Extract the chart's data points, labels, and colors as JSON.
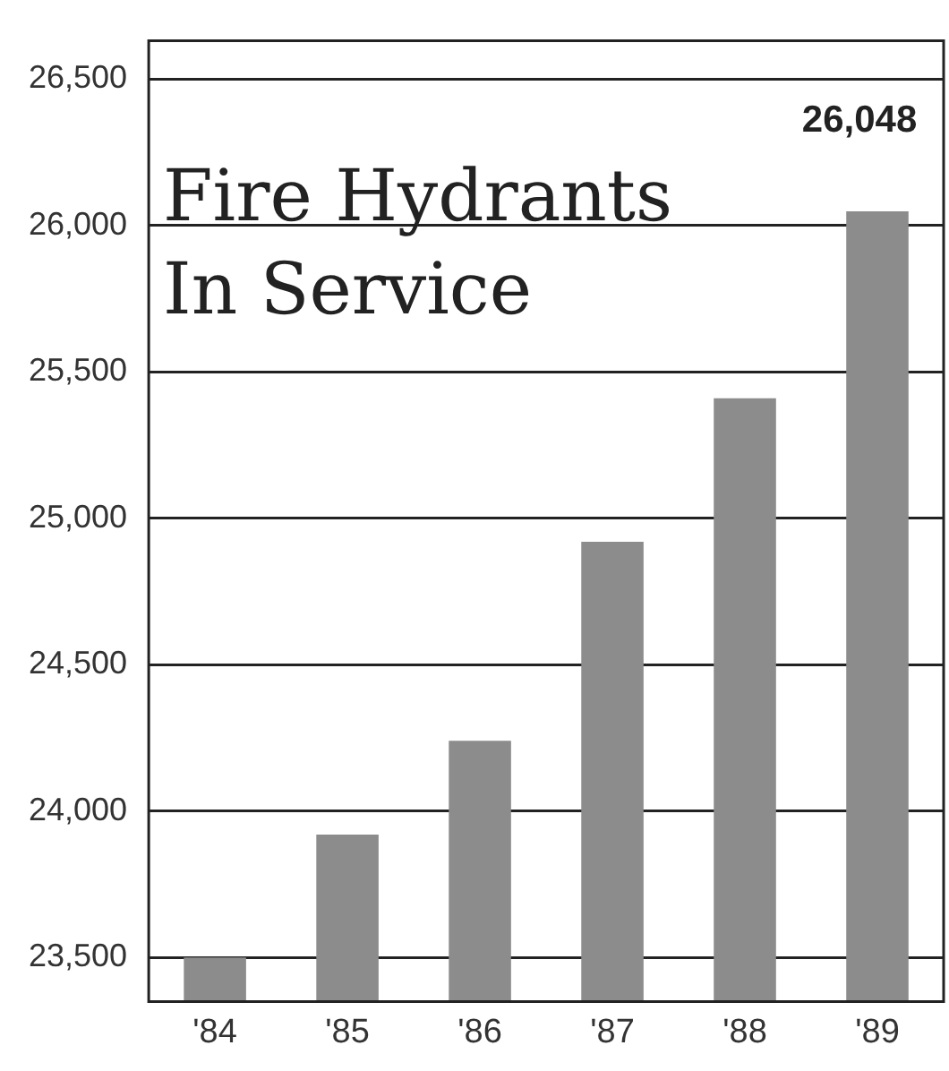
{
  "chart_data": {
    "type": "bar",
    "title": "Fire Hydrants In Service",
    "categories": [
      "'84",
      "'85",
      "'86",
      "'87",
      "'88",
      "'89"
    ],
    "values": [
      23500,
      23920,
      24240,
      24920,
      25410,
      26048
    ],
    "value_labels": [
      null,
      null,
      null,
      null,
      null,
      "26,048"
    ],
    "color": "#8c8c8c",
    "ylim": [
      23350,
      26630
    ],
    "yticks": [
      {
        "value": 23500,
        "label": "23,500"
      },
      {
        "value": 24000,
        "label": "24,000"
      },
      {
        "value": 24500,
        "label": "24,500"
      },
      {
        "value": 25000,
        "label": "25,000"
      },
      {
        "value": 25500,
        "label": "25,500"
      },
      {
        "value": 26000,
        "label": "26,000"
      },
      {
        "value": 26500,
        "label": "26,500"
      }
    ],
    "grid": "y"
  }
}
